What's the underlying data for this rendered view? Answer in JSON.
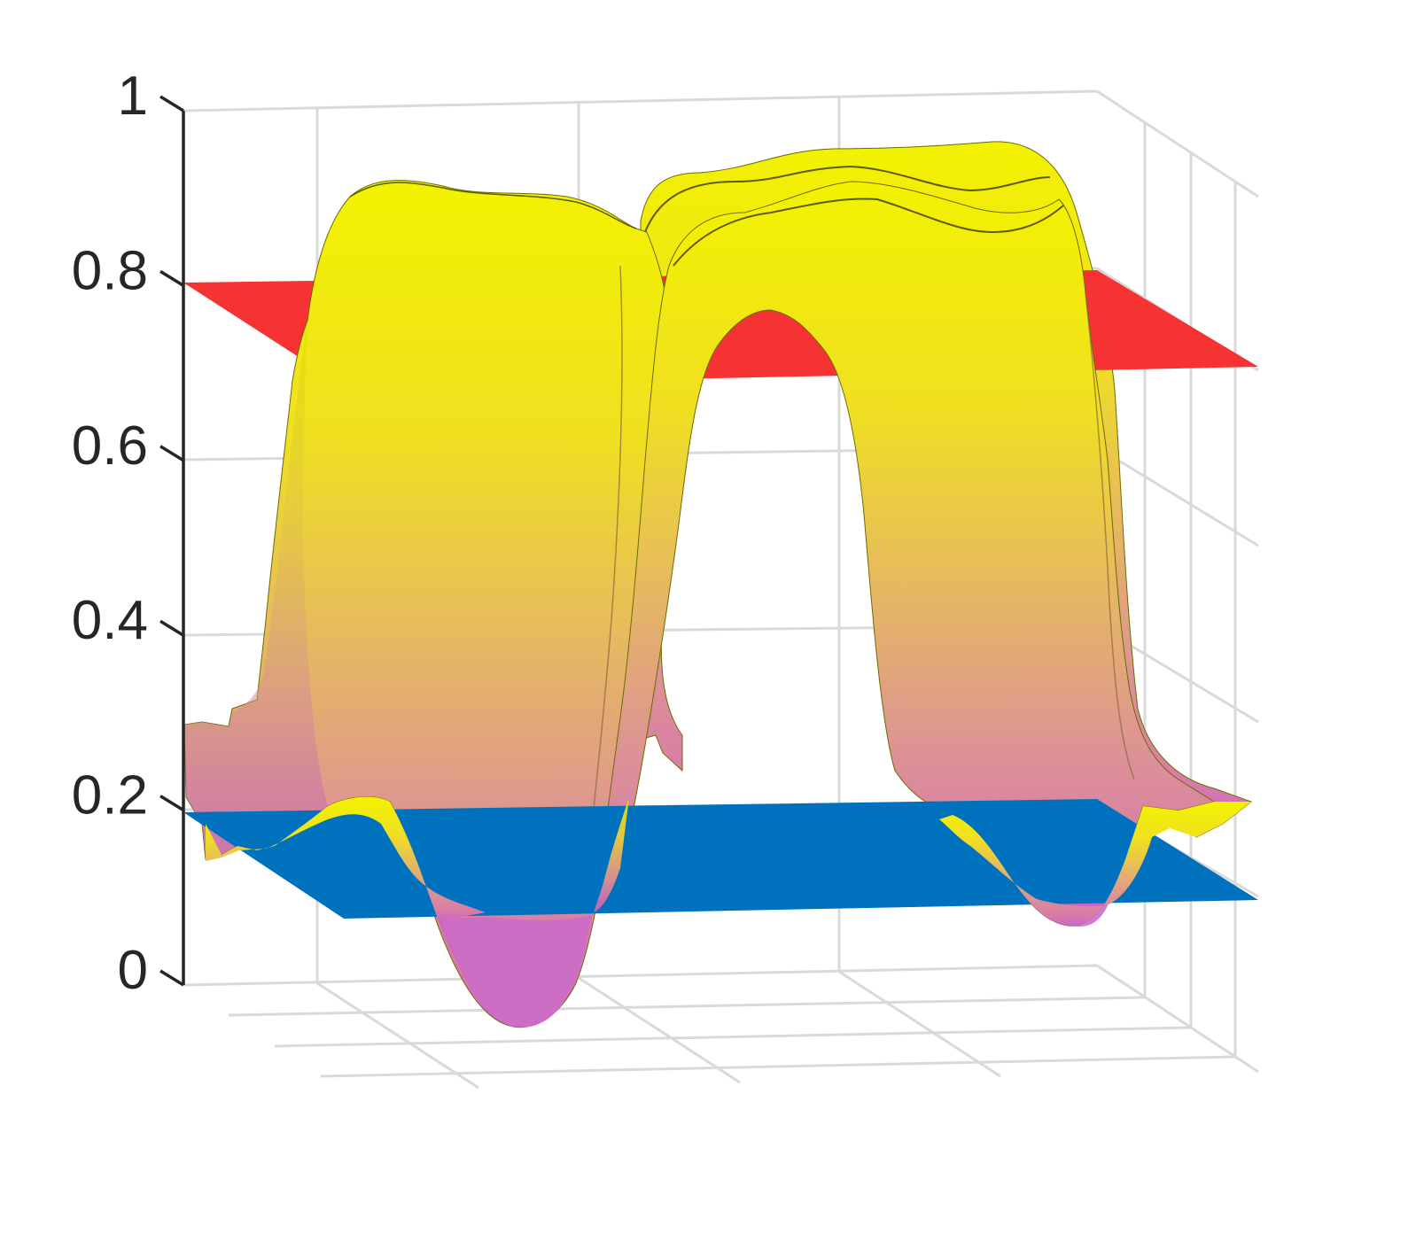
{
  "chart_data": {
    "type": "surface",
    "title": "",
    "xlabel": "",
    "ylabel": "",
    "zlabel": "",
    "zlim": [
      0,
      1
    ],
    "z_ticks": [
      0,
      0.2,
      0.4,
      0.6,
      0.8,
      1
    ],
    "z_tick_labels": [
      "0",
      "0.2",
      "0.4",
      "0.6",
      "0.8",
      "1"
    ],
    "grid": true,
    "colormap": [
      "#cc66cc",
      "#d98fa0",
      "#e6b070",
      "#f5e020",
      "#f0f000"
    ],
    "surface": {
      "name": "",
      "shape": "two parallel arches joined by a ridge",
      "min_value": -0.05,
      "max_value": 0.94,
      "ridge_value": 0.9,
      "base_value": 0.18
    },
    "planes": [
      {
        "name": "",
        "z": 0.8,
        "color": "#f53333"
      },
      {
        "name": "",
        "z": 0.2,
        "color": "#0072bd"
      }
    ]
  }
}
